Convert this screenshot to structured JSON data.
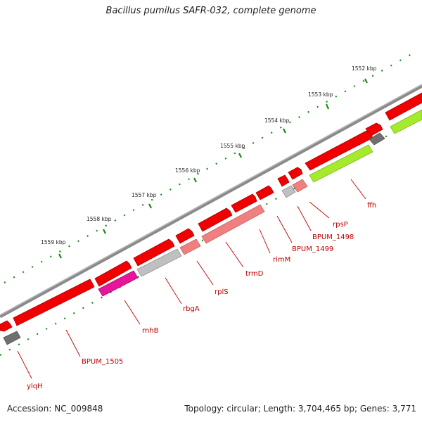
{
  "title": "Bacillus pumilus SAFR-032, complete genome",
  "accession": "Accession: NC_009848",
  "summary": "Topology: circular; Length: 3,704,465 bp; Genes: 3,771",
  "ticks": [
    "1552 kbp",
    "1553 kbp",
    "1554 kbp",
    "1555 kbp",
    "1556 kbp",
    "1557 kbp",
    "1558 kbp",
    "1559 kbp"
  ],
  "gene_labels": [
    "ffh",
    "rpsP",
    "BPUM_1498",
    "BPUM_1499",
    "rimM",
    "trmD",
    "rplS",
    "rbgA",
    "rnhB",
    "BPUM_1505",
    "ylqH"
  ],
  "colors": {
    "backbone": "#8a8a8a",
    "gene_red": "#f00000",
    "gene_salmon": "#f08080",
    "gene_green": "#a6ea2e",
    "gene_magenta": "#e8159a",
    "gene_grey": "#c0c0c0",
    "gene_dark": "#707070",
    "dots": "#1a8a1a",
    "label_red": "#c00000"
  }
}
